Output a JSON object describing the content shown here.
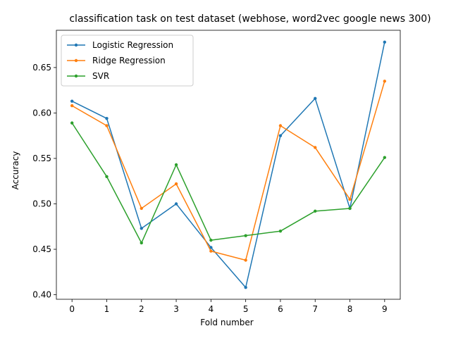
{
  "chart_data": {
    "type": "line",
    "title": "classification task on test dataset (webhose, word2vec google news 300)",
    "xlabel": "Fold number",
    "ylabel": "Accuracy",
    "x": [
      0,
      1,
      2,
      3,
      4,
      5,
      6,
      7,
      8,
      9
    ],
    "xticks": [
      "0",
      "1",
      "2",
      "3",
      "4",
      "5",
      "6",
      "7",
      "8",
      "9"
    ],
    "yticks": [
      "0.40",
      "0.45",
      "0.50",
      "0.55",
      "0.60",
      "0.65"
    ],
    "xlim": [
      -0.45,
      9.45
    ],
    "ylim": [
      0.395,
      0.691
    ],
    "grid": false,
    "legend_position": "upper left",
    "series": [
      {
        "name": "Logistic Regression",
        "color": "#1f77b4",
        "values": [
          0.613,
          0.594,
          0.473,
          0.5,
          0.452,
          0.408,
          0.575,
          0.616,
          0.495,
          0.678
        ]
      },
      {
        "name": "Ridge Regression",
        "color": "#ff7f0e",
        "values": [
          0.608,
          0.586,
          0.495,
          0.522,
          0.448,
          0.438,
          0.586,
          0.562,
          0.505,
          0.635
        ]
      },
      {
        "name": "SVR",
        "color": "#2ca02c",
        "values": [
          0.589,
          0.53,
          0.457,
          0.543,
          0.46,
          0.465,
          0.47,
          0.492,
          0.495,
          0.551
        ]
      }
    ]
  }
}
